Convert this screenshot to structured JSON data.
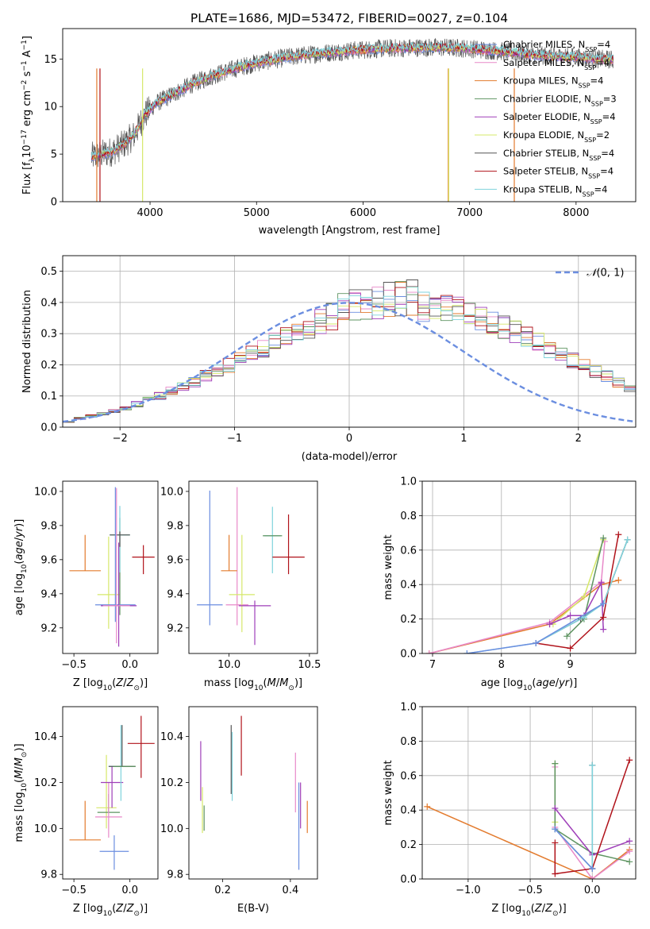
{
  "figure": {
    "title": "PLATE=1686, MJD=53472, FIBERID=0027, z=0.104"
  },
  "chart_data": [
    {
      "id": "spectrum",
      "type": "line",
      "title": "PLATE=1686, MJD=53472, FIBERID=0027, z=0.104",
      "xlabel": "wavelength [Angstrom, rest frame]",
      "ylabel": "Flux [f_λ 10^-17 erg cm^-2 s^-1 A^-1]",
      "xlim": [
        3180,
        8560
      ],
      "ylim": [
        0,
        18.2
      ],
      "xticks": [
        4000,
        5000,
        6000,
        7000,
        8000
      ],
      "yticks": [
        0,
        5,
        10,
        15
      ],
      "grid": false,
      "legend_position": "top-right",
      "continuum_x": [
        3450,
        3550,
        3650,
        3750,
        3850,
        3950,
        4050,
        4200,
        4400,
        4600,
        4800,
        5000,
        5300,
        5600,
        5900,
        6200,
        6500,
        6800,
        7000,
        7200,
        7400,
        7600,
        7800,
        8000,
        8200,
        8400
      ],
      "continuum_y": [
        4.7,
        5.0,
        5.3,
        6.0,
        7.0,
        9.1,
        10.3,
        11.2,
        12.4,
        13.3,
        14.0,
        14.6,
        15.2,
        15.6,
        15.9,
        16.1,
        16.2,
        16.2,
        16.1,
        15.9,
        15.7,
        15.4,
        15.3,
        15.2,
        15.0,
        14.9
      ],
      "series": [
        {
          "name": "Chabrier MILES, N_SSP=4",
          "color": "#6b8ee0"
        },
        {
          "name": "Salpeter MILES, N_SSP=4",
          "color": "#e889c9"
        },
        {
          "name": "Kroupa MILES, N_SSP=4",
          "color": "#e37b2e"
        },
        {
          "name": "Chabrier ELODIE, N_SSP=3",
          "color": "#5e9461"
        },
        {
          "name": "Salpeter ELODIE, N_SSP=4",
          "color": "#9f3fb9"
        },
        {
          "name": "Kroupa ELODIE, N_SSP=2",
          "color": "#d6e86a"
        },
        {
          "name": "Chabrier STELIB, N_SSP=4",
          "color": "#555555"
        },
        {
          "name": "Salpeter STELIB, N_SSP=4",
          "color": "#b0121a"
        },
        {
          "name": "Kroupa STELIB, N_SSP=4",
          "color": "#7fd3dc"
        }
      ]
    },
    {
      "id": "residuals",
      "type": "line",
      "xlabel": "(data-model)/error",
      "ylabel": "Normed distribution",
      "xlim": [
        -2.5,
        2.5
      ],
      "ylim": [
        0,
        0.55
      ],
      "xticks": [
        -2,
        -1,
        0,
        1,
        2
      ],
      "yticks": [
        0.0,
        0.1,
        0.2,
        0.3,
        0.4,
        0.5
      ],
      "grid": true,
      "legend_position": "top-right",
      "legend_label": "N(0,1)",
      "bin_width": 0.1,
      "bin_start": -2.5,
      "histogram_values": [
        0.018,
        0.028,
        0.036,
        0.042,
        0.052,
        0.063,
        0.074,
        0.087,
        0.1,
        0.115,
        0.13,
        0.146,
        0.163,
        0.18,
        0.198,
        0.215,
        0.234,
        0.252,
        0.27,
        0.288,
        0.305,
        0.322,
        0.338,
        0.352,
        0.366,
        0.377,
        0.386,
        0.393,
        0.398,
        0.4,
        0.4,
        0.398,
        0.393,
        0.386,
        0.377,
        0.366,
        0.352,
        0.338,
        0.322,
        0.305,
        0.288,
        0.27,
        0.252,
        0.234,
        0.215,
        0.198,
        0.18,
        0.163,
        0.146,
        0.13,
        0.115
      ],
      "gaussian_color": "#6b8ee0"
    },
    {
      "id": "age-vs-Z",
      "type": "scatter",
      "xlabel": "Z [log10(Z/Z☉)]",
      "ylabel": "age [log10(age/yr)]",
      "xlim": [
        -0.6,
        0.25
      ],
      "ylim": [
        9.05,
        10.06
      ],
      "xticks": [
        -0.5,
        0.0
      ],
      "yticks": [
        9.2,
        9.4,
        9.6,
        9.8,
        10.0
      ],
      "points": [
        {
          "x": -0.4,
          "y": 9.535,
          "xerr": 0.14,
          "yerr_lo": 0.0,
          "yerr_hi": 0.21,
          "color": "#e37b2e"
        },
        {
          "x": -0.19,
          "y": 9.395,
          "xerr": 0.1,
          "yerr_lo": 0.2,
          "yerr_hi": 0.34,
          "color": "#d6e86a"
        },
        {
          "x": -0.09,
          "y": 9.745,
          "xerr": 0.09,
          "yerr_lo": 0.47,
          "yerr_hi": 0.1,
          "color": "#5e9461"
        },
        {
          "x": -0.09,
          "y": 9.745,
          "xerr": 0.09,
          "yerr_lo": 0.22,
          "yerr_hi": 0.17,
          "color": "#7fd3dc"
        },
        {
          "x": -0.09,
          "y": 9.745,
          "xerr": 0.09,
          "yerr_lo": 0.07,
          "yerr_hi": 0.02,
          "color": "#555555"
        },
        {
          "x": -0.13,
          "y": 9.335,
          "xerr": 0.18,
          "yerr_lo": 0.1,
          "yerr_hi": 0.69,
          "color": "#6b8ee0"
        },
        {
          "x": -0.1,
          "y": 9.33,
          "xerr": 0.16,
          "yerr_lo": 0.24,
          "yerr_hi": 0.37,
          "color": "#9f3fb9"
        },
        {
          "x": -0.12,
          "y": 9.33,
          "xerr": 0.12,
          "yerr_lo": 0.22,
          "yerr_hi": 0.69,
          "color": "#e889c9"
        },
        {
          "x": 0.12,
          "y": 9.615,
          "xerr": 0.1,
          "yerr_lo": 0.1,
          "yerr_hi": 0.07,
          "color": "#b0121a"
        }
      ]
    },
    {
      "id": "age-vs-mass",
      "type": "scatter",
      "xlabel": "mass [log10(M/M☉)]",
      "ylabel": "",
      "xlim": [
        9.75,
        10.55
      ],
      "ylim": [
        9.05,
        10.06
      ],
      "xticks": [
        10.0,
        10.5
      ],
      "yticks": [
        9.2,
        9.4,
        9.6,
        9.8,
        10.0
      ],
      "points": [
        {
          "x": 9.88,
          "y": 9.335,
          "xerr": 0.08,
          "yerr_lo": 0.12,
          "yerr_hi": 0.67,
          "color": "#6b8ee0"
        },
        {
          "x": 10.05,
          "y": 9.335,
          "xerr": 0.07,
          "yerr_lo": 0.12,
          "yerr_hi": 0.69,
          "color": "#e889c9"
        },
        {
          "x": 10.0,
          "y": 9.535,
          "xerr": 0.05,
          "yerr_lo": 0.0,
          "yerr_hi": 0.21,
          "color": "#e37b2e"
        },
        {
          "x": 10.08,
          "y": 9.395,
          "xerr": 0.08,
          "yerr_lo": 0.22,
          "yerr_hi": 0.35,
          "color": "#d6e86a"
        },
        {
          "x": 10.16,
          "y": 9.33,
          "xerr": 0.1,
          "yerr_lo": 0.23,
          "yerr_hi": 0.03,
          "color": "#9f3fb9"
        },
        {
          "x": 10.27,
          "y": 9.74,
          "xerr": 0.05,
          "yerr_lo": 0.22,
          "yerr_hi": 0.17,
          "color": "#7fd3dc"
        },
        {
          "x": 10.27,
          "y": 9.74,
          "xerr": 0.06,
          "yerr_lo": 0.0,
          "yerr_hi": 0.0,
          "color": "#5e9461"
        },
        {
          "x": 10.37,
          "y": 9.615,
          "xerr": 0.1,
          "yerr_lo": 0.1,
          "yerr_hi": 0.25,
          "color": "#b0121a"
        }
      ]
    },
    {
      "id": "weight-vs-age",
      "type": "line",
      "xlabel": "age [log10(age/yr)]",
      "ylabel": "mass weight",
      "xlim": [
        6.85,
        9.95
      ],
      "ylim": [
        0.0,
        1.0
      ],
      "xticks": [
        7,
        8,
        9
      ],
      "yticks": [
        0.0,
        0.2,
        0.4,
        0.6,
        0.8,
        1.0
      ],
      "grid": true,
      "series": [
        {
          "color": "#e37b2e",
          "x": [
            6.95,
            8.7,
            9.45,
            9.7
          ],
          "y": [
            0.0,
            0.17,
            0.4,
            0.425
          ]
        },
        {
          "color": "#e889c9",
          "x": [
            6.95,
            8.7,
            9.45,
            9.5
          ],
          "y": [
            0.0,
            0.18,
            0.415,
            0.65
          ]
        },
        {
          "color": "#d6e86a",
          "x": [
            8.75,
            9.2,
            9.48
          ],
          "y": [
            0.17,
            0.33,
            0.66
          ]
        },
        {
          "color": "#5e9461",
          "x": [
            8.95,
            9.2,
            9.48
          ],
          "y": [
            0.1,
            0.2,
            0.67
          ]
        },
        {
          "color": "#9f3fb9",
          "x": [
            8.7,
            9.0,
            9.2,
            9.45,
            9.48
          ],
          "y": [
            0.17,
            0.22,
            0.22,
            0.41,
            0.14
          ]
        },
        {
          "color": "#555555",
          "x": [
            8.5,
            9.15,
            9.48,
            9.83
          ],
          "y": [
            0.06,
            0.2,
            0.29,
            0.66
          ]
        },
        {
          "color": "#b0121a",
          "x": [
            8.5,
            9.0,
            9.48,
            9.7
          ],
          "y": [
            0.06,
            0.03,
            0.21,
            0.69
          ]
        },
        {
          "color": "#7fd3dc",
          "x": [
            7.5,
            8.5,
            9.2,
            9.48,
            9.83
          ],
          "y": [
            0.0,
            0.06,
            0.21,
            0.29,
            0.66
          ]
        },
        {
          "color": "#6b8ee0",
          "x": [
            7.5,
            8.5,
            9.48
          ],
          "y": [
            0.0,
            0.06,
            0.29
          ]
        }
      ]
    },
    {
      "id": "mass-vs-Z",
      "type": "scatter",
      "xlabel": "Z [log10(Z/Z☉)]",
      "ylabel": "mass [log10(M/M☉)]",
      "xlim": [
        -0.6,
        0.25
      ],
      "ylim": [
        9.78,
        10.53
      ],
      "xticks": [
        -0.5,
        0.0
      ],
      "yticks": [
        9.8,
        10.0,
        10.2,
        10.4
      ],
      "points": [
        {
          "x": -0.4,
          "y": 9.95,
          "xerr": 0.14,
          "yerr_lo": 0.0,
          "yerr_hi": 0.17,
          "color": "#e37b2e"
        },
        {
          "x": -0.21,
          "y": 10.09,
          "xerr": 0.09,
          "yerr_lo": 0.09,
          "yerr_hi": 0.23,
          "color": "#d6e86a"
        },
        {
          "x": -0.19,
          "y": 10.07,
          "xerr": 0.1,
          "yerr_lo": 0.0,
          "yerr_hi": 0.08,
          "color": "#5e9461"
        },
        {
          "x": -0.19,
          "y": 10.05,
          "xerr": 0.12,
          "yerr_lo": 0.09,
          "yerr_hi": 0.15,
          "color": "#e889c9"
        },
        {
          "x": -0.16,
          "y": 10.2,
          "xerr": 0.1,
          "yerr_lo": 0.11,
          "yerr_hi": 0.07,
          "color": "#9f3fb9"
        },
        {
          "x": -0.08,
          "y": 10.27,
          "xerr": 0.11,
          "yerr_lo": 0.15,
          "yerr_hi": 0.18,
          "color": "#7fd3dc"
        },
        {
          "x": -0.07,
          "y": 10.27,
          "xerr": 0.12,
          "yerr_lo": 0.0,
          "yerr_hi": 0.18,
          "color": "#555555"
        },
        {
          "x": -0.05,
          "y": 10.27,
          "xerr": 0.1,
          "yerr_lo": 0.0,
          "yerr_hi": 0.0,
          "color": "#5e9461"
        },
        {
          "x": -0.14,
          "y": 9.9,
          "xerr": 0.13,
          "yerr_lo": 0.08,
          "yerr_hi": 0.07,
          "color": "#6b8ee0"
        },
        {
          "x": 0.1,
          "y": 10.37,
          "xerr": 0.12,
          "yerr_lo": 0.15,
          "yerr_hi": 0.12,
          "color": "#b0121a"
        }
      ]
    },
    {
      "id": "mass-vs-ebv",
      "type": "scatter",
      "xlabel": "E(B-V)",
      "ylabel": "",
      "xlim": [
        0.1,
        0.48
      ],
      "ylim": [
        9.78,
        10.53
      ],
      "xticks": [
        0.2,
        0.4
      ],
      "yticks": [
        9.8,
        10.0,
        10.2,
        10.4
      ],
      "points": [
        {
          "x": 0.135,
          "y": 10.25,
          "yerr_lo": 0.13,
          "yerr_hi": 0.13,
          "color": "#9f3fb9"
        },
        {
          "x": 0.14,
          "y": 10.1,
          "yerr_lo": 0.12,
          "yerr_hi": 0.08,
          "color": "#d6e86a"
        },
        {
          "x": 0.145,
          "y": 10.05,
          "yerr_lo": 0.06,
          "yerr_hi": 0.05,
          "color": "#5e9461"
        },
        {
          "x": 0.225,
          "y": 10.3,
          "yerr_lo": 0.15,
          "yerr_hi": 0.15,
          "color": "#555555"
        },
        {
          "x": 0.228,
          "y": 10.27,
          "yerr_lo": 0.15,
          "yerr_hi": 0.15,
          "color": "#7fd3dc"
        },
        {
          "x": 0.255,
          "y": 10.36,
          "yerr_lo": 0.13,
          "yerr_hi": 0.13,
          "color": "#b0121a"
        },
        {
          "x": 0.415,
          "y": 10.2,
          "yerr_lo": 0.13,
          "yerr_hi": 0.13,
          "color": "#e889c9"
        },
        {
          "x": 0.425,
          "y": 10.0,
          "yerr_lo": 0.18,
          "yerr_hi": 0.2,
          "color": "#6b8ee0"
        },
        {
          "x": 0.43,
          "y": 10.1,
          "yerr_lo": 0.1,
          "yerr_hi": 0.1,
          "color": "#9f3fb9"
        },
        {
          "x": 0.45,
          "y": 10.05,
          "yerr_lo": 0.07,
          "yerr_hi": 0.07,
          "color": "#e37b2e"
        }
      ]
    },
    {
      "id": "weight-vs-Z",
      "type": "line",
      "xlabel": "Z [log10(Z/Z☉)]",
      "ylabel": "mass weight",
      "xlim": [
        -1.37,
        0.35
      ],
      "ylim": [
        0.0,
        1.0
      ],
      "xticks": [
        -1.0,
        -0.5,
        0.0
      ],
      "yticks": [
        0.0,
        0.2,
        0.4,
        0.6,
        0.8,
        1.0
      ],
      "grid": true,
      "series": [
        {
          "color": "#e37b2e",
          "x": [
            -1.33,
            0.0,
            0.3
          ],
          "y": [
            0.42,
            0.0,
            0.17
          ]
        },
        {
          "color": "#e889c9",
          "x": [
            -0.3,
            -0.3,
            0.0,
            0.3
          ],
          "y": [
            0.65,
            0.3,
            0.0,
            0.16
          ]
        },
        {
          "color": "#d6e86a",
          "x": [
            -0.3,
            -0.3
          ],
          "y": [
            0.67,
            0.33
          ]
        },
        {
          "color": "#5e9461",
          "x": [
            -0.3,
            -0.3,
            0.0,
            0.3
          ],
          "y": [
            0.67,
            0.29,
            0.15,
            0.1
          ]
        },
        {
          "color": "#9f3fb9",
          "x": [
            -0.3,
            0.0,
            0.3
          ],
          "y": [
            0.41,
            0.14,
            0.22
          ]
        },
        {
          "color": "#555555",
          "x": [
            -0.3,
            0.0,
            0.0
          ],
          "y": [
            0.29,
            0.06,
            0.66
          ]
        },
        {
          "color": "#b0121a",
          "x": [
            -0.3,
            -0.3,
            0.0,
            0.3
          ],
          "y": [
            0.21,
            0.03,
            0.06,
            0.69
          ]
        },
        {
          "color": "#7fd3dc",
          "x": [
            -0.3,
            0.0,
            0.0
          ],
          "y": [
            0.29,
            0.06,
            0.66
          ]
        },
        {
          "color": "#6b8ee0",
          "x": [
            -0.3,
            0.0
          ],
          "y": [
            0.29,
            0.06
          ]
        }
      ]
    }
  ]
}
